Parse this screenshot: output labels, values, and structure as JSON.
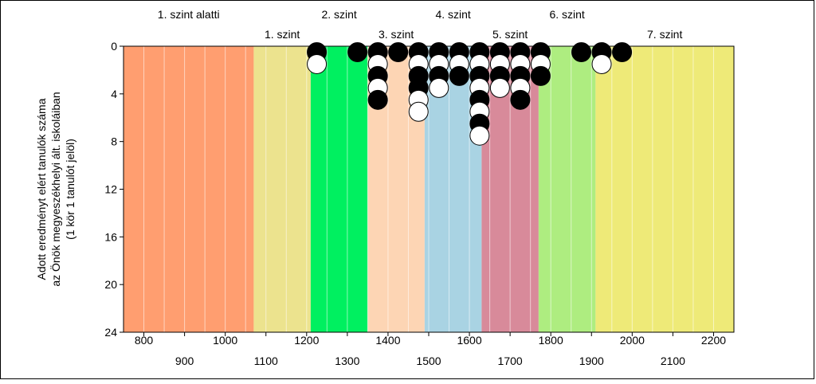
{
  "chart_data": {
    "type": "scatter",
    "ylabel_lines": [
      "Adott eredményt elért tanulók száma",
      "az Önök megyeszékhelyi ált. iskoláiban",
      "(1 kör 1 tanulót jelöl)"
    ],
    "xlim": [
      750,
      2250
    ],
    "ylim": [
      0,
      24
    ],
    "y_inverted": true,
    "y_ticks": [
      0,
      4,
      8,
      12,
      16,
      20,
      24
    ],
    "x_ticks_top": [
      800,
      1000,
      1200,
      1400,
      1600,
      1800,
      2000,
      2200
    ],
    "x_ticks_bottom": [
      900,
      1100,
      1300,
      1500,
      1700,
      1900,
      2100
    ],
    "x_tick_labels_top": [
      "800",
      "1000",
      "1200",
      "1400",
      "1600",
      "1800",
      "2000",
      "2200"
    ],
    "x_tick_labels_bottom": [
      "900",
      "1100",
      "1300",
      "1500",
      "1700",
      "1900",
      "2100"
    ],
    "y_tick_labels": [
      "0",
      "4",
      "8",
      "12",
      "16",
      "20",
      "24"
    ],
    "levels": [
      {
        "label": "1. szint alatti",
        "from": 750,
        "to": 1070,
        "color": "#ff9e70",
        "label_row": "upper"
      },
      {
        "label": "1. szint",
        "from": 1070,
        "to": 1210,
        "color": "#ece38e",
        "label_row": "lower"
      },
      {
        "label": "2. szint",
        "from": 1210,
        "to": 1350,
        "color": "#00f060",
        "label_row": "upper"
      },
      {
        "label": "3. szint",
        "from": 1350,
        "to": 1490,
        "color": "#fdd5b4",
        "label_row": "lower"
      },
      {
        "label": "4. szint",
        "from": 1490,
        "to": 1630,
        "color": "#a9d3e3",
        "label_row": "upper"
      },
      {
        "label": "5. szint",
        "from": 1630,
        "to": 1770,
        "color": "#d88a9a",
        "label_row": "lower"
      },
      {
        "label": "6. szint",
        "from": 1770,
        "to": 1910,
        "color": "#aeed80",
        "label_row": "upper"
      },
      {
        "label": "7. szint",
        "from": 1910,
        "to": 2250,
        "color": "#eeea78",
        "label_row": "lower"
      }
    ],
    "stacks": [
      {
        "x": 1225,
        "circles": [
          "black",
          "white"
        ]
      },
      {
        "x": 1325,
        "circles": [
          "black"
        ]
      },
      {
        "x": 1375,
        "circles": [
          "black",
          "white",
          "black",
          "white",
          "black"
        ]
      },
      {
        "x": 1425,
        "circles": [
          "black"
        ]
      },
      {
        "x": 1475,
        "circles": [
          "black",
          "white",
          "black",
          "black",
          "white"
        ]
      },
      {
        "x": 1475,
        "circles": [
          "white"
        ],
        "start": 6
      },
      {
        "x": 1525,
        "circles": [
          "black",
          "white",
          "black",
          "white"
        ]
      },
      {
        "x": 1575,
        "circles": [
          "black",
          "white",
          "black"
        ]
      },
      {
        "x": 1625,
        "circles": [
          "black",
          "white",
          "black",
          "white",
          "black",
          "white",
          "black",
          "white"
        ]
      },
      {
        "x": 1675,
        "circles": [
          "black",
          "white",
          "black",
          "white"
        ]
      },
      {
        "x": 1725,
        "circles": [
          "black",
          "white",
          "black",
          "white",
          "black"
        ]
      },
      {
        "x": 1775,
        "circles": [
          "black",
          "white",
          "black"
        ]
      },
      {
        "x": 1875,
        "circles": [
          "black"
        ]
      },
      {
        "x": 1925,
        "circles": [
          "black",
          "white"
        ]
      },
      {
        "x": 1975,
        "circles": [
          "black"
        ]
      }
    ],
    "grid": true,
    "minor_grid_step": 50,
    "point_unit": 1
  }
}
